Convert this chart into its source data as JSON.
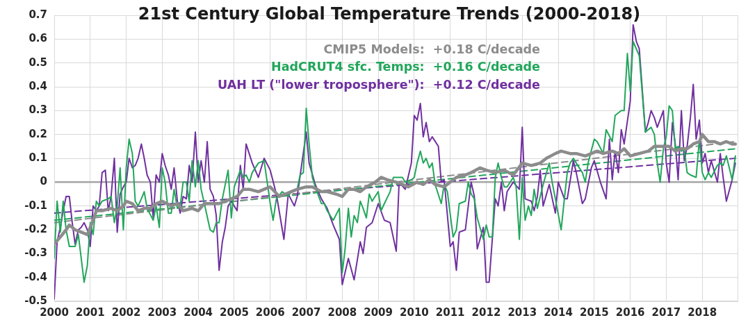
{
  "chart_data": {
    "type": "line",
    "title": "21st Century Global Temperature Trends (2000-2018)",
    "xlim": [
      2000,
      2019
    ],
    "xticks": [
      2000,
      2001,
      2002,
      2003,
      2004,
      2005,
      2006,
      2007,
      2008,
      2009,
      2010,
      2011,
      2012,
      2013,
      2014,
      2015,
      2016,
      2017,
      2018
    ],
    "ylim": [
      -0.5,
      0.7
    ],
    "yticks": [
      -0.5,
      -0.4,
      -0.3,
      -0.2,
      -0.1,
      0,
      0.1,
      0.2,
      0.3,
      0.4,
      0.5,
      0.6,
      0.7
    ],
    "grid": true,
    "legend": "top",
    "marker": "none",
    "series": [
      {
        "name": "CMIP5 Models:  +0.18 C/decade",
        "color": "#8c8c8c",
        "line_style": "solid",
        "x": [
          2000.0,
          2000.17,
          2000.33,
          2000.42,
          2000.58,
          2000.75,
          2000.92,
          2001.08,
          2001.17,
          2001.33,
          2001.58,
          2001.75,
          2001.92,
          2002.0,
          2002.17,
          2002.33,
          2002.5,
          2002.67,
          2002.83,
          2003.0,
          2003.25,
          2003.42,
          2003.58,
          2003.83,
          2004.0,
          2004.17,
          2004.33,
          2004.58,
          2004.75,
          2004.92,
          2005.08,
          2005.25,
          2005.42,
          2005.67,
          2005.83,
          2006.0,
          2006.25,
          2006.42,
          2006.58,
          2006.75,
          2007.0,
          2007.17,
          2007.42,
          2007.58,
          2007.83,
          2008.0,
          2008.17,
          2008.33,
          2008.5,
          2008.67,
          2008.92,
          2009.08,
          2009.25,
          2009.5,
          2009.67,
          2009.83,
          2010.08,
          2010.25,
          2010.42,
          2010.58,
          2010.83,
          2011.0,
          2011.17,
          2011.42,
          2011.58,
          2011.83,
          2012.0,
          2012.25,
          2012.5,
          2012.75,
          2013.0,
          2013.25,
          2013.5,
          2013.67,
          2013.92,
          2014.08,
          2014.33,
          2014.5,
          2014.75,
          2014.92,
          2015.08,
          2015.25,
          2015.5,
          2015.67,
          2015.83,
          2016.0,
          2016.25,
          2016.5,
          2016.67,
          2016.83,
          2017.08,
          2017.25,
          2017.42,
          2017.58,
          2017.75,
          2017.92,
          2018.0,
          2018.17,
          2018.33,
          2018.5,
          2018.67,
          2018.83,
          2018.92
        ],
        "values": [
          -0.26,
          -0.23,
          -0.2,
          -0.18,
          -0.2,
          -0.21,
          -0.22,
          -0.16,
          -0.12,
          -0.12,
          -0.11,
          -0.12,
          -0.1,
          -0.08,
          -0.09,
          -0.12,
          -0.11,
          -0.11,
          -0.09,
          -0.08,
          -0.1,
          -0.09,
          -0.12,
          -0.11,
          -0.12,
          -0.09,
          -0.09,
          -0.09,
          -0.08,
          -0.07,
          -0.06,
          -0.03,
          -0.03,
          -0.04,
          -0.03,
          -0.02,
          -0.06,
          -0.05,
          -0.04,
          -0.03,
          -0.02,
          -0.02,
          -0.04,
          -0.04,
          -0.05,
          -0.06,
          -0.03,
          -0.03,
          -0.04,
          -0.02,
          0.0,
          0.02,
          0.01,
          0.0,
          -0.01,
          -0.02,
          0.0,
          -0.01,
          0.01,
          -0.01,
          -0.02,
          0.0,
          0.02,
          0.03,
          0.04,
          0.06,
          0.05,
          0.04,
          0.05,
          0.03,
          0.08,
          0.07,
          0.08,
          0.1,
          0.12,
          0.13,
          0.12,
          0.12,
          0.11,
          0.12,
          0.13,
          0.12,
          0.13,
          0.12,
          0.14,
          0.11,
          0.12,
          0.13,
          0.15,
          0.15,
          0.15,
          0.13,
          0.14,
          0.14,
          0.16,
          0.17,
          0.2,
          0.17,
          0.17,
          0.16,
          0.17,
          0.16,
          0.16
        ]
      },
      {
        "name": "HadCRUT4 sfc. Temps:  +0.16 C/decade",
        "color": "#22a65b",
        "line_style": "solid",
        "x": [
          2000.0,
          2000.08,
          2000.17,
          2000.25,
          2000.33,
          2000.42,
          2000.58,
          2000.67,
          2000.83,
          2000.92,
          2001.0,
          2001.08,
          2001.17,
          2001.25,
          2001.33,
          2001.5,
          2001.58,
          2001.67,
          2001.75,
          2001.83,
          2001.92,
          2002.0,
          2002.08,
          2002.17,
          2002.25,
          2002.33,
          2002.42,
          2002.5,
          2002.58,
          2002.75,
          2002.83,
          2002.92,
          2003.0,
          2003.08,
          2003.17,
          2003.25,
          2003.33,
          2003.42,
          2003.5,
          2003.58,
          2003.67,
          2003.75,
          2003.83,
          2003.92,
          2004.0,
          2004.08,
          2004.17,
          2004.33,
          2004.42,
          2004.5,
          2004.58,
          2004.67,
          2004.83,
          2004.92,
          2005.0,
          2005.17,
          2005.25,
          2005.33,
          2005.42,
          2005.5,
          2005.67,
          2005.83,
          2006.0,
          2006.08,
          2006.17,
          2006.33,
          2006.42,
          2006.5,
          2006.58,
          2006.75,
          2006.83,
          2006.92,
          2007.0,
          2007.08,
          2007.17,
          2007.25,
          2007.42,
          2007.5,
          2007.58,
          2007.75,
          2007.92,
          2008.0,
          2008.08,
          2008.17,
          2008.25,
          2008.33,
          2008.42,
          2008.5,
          2008.58,
          2008.67,
          2008.75,
          2008.83,
          2009.0,
          2009.08,
          2009.17,
          2009.33,
          2009.42,
          2009.58,
          2009.67,
          2009.75,
          2009.92,
          2010.0,
          2010.08,
          2010.17,
          2010.25,
          2010.33,
          2010.42,
          2010.5,
          2010.58,
          2010.75,
          2010.83,
          2010.92,
          2011.08,
          2011.17,
          2011.25,
          2011.42,
          2011.5,
          2011.58,
          2011.67,
          2011.75,
          2011.92,
          2012.0,
          2012.08,
          2012.17,
          2012.25,
          2012.33,
          2012.42,
          2012.5,
          2012.58,
          2012.75,
          2012.83,
          2012.92,
          2013.0,
          2013.08,
          2013.17,
          2013.25,
          2013.33,
          2013.42,
          2013.58,
          2013.75,
          2013.83,
          2013.92,
          2014.08,
          2014.17,
          2014.25,
          2014.33,
          2014.42,
          2014.5,
          2014.67,
          2014.75,
          2014.83,
          2015.0,
          2015.08,
          2015.25,
          2015.33,
          2015.5,
          2015.58,
          2015.75,
          2015.83,
          2015.92,
          2016.0,
          2016.08,
          2016.25,
          2016.42,
          2016.5,
          2016.58,
          2016.67,
          2016.75,
          2016.83,
          2016.92,
          2017.0,
          2017.08,
          2017.17,
          2017.25,
          2017.33,
          2017.42,
          2017.5,
          2017.58,
          2017.67,
          2017.83,
          2017.92,
          2018.0,
          2018.08,
          2018.17,
          2018.25,
          2018.42,
          2018.5,
          2018.58,
          2018.67,
          2018.83,
          2018.92
        ],
        "values": [
          -0.32,
          -0.08,
          -0.21,
          -0.08,
          -0.2,
          -0.27,
          -0.27,
          -0.22,
          -0.42,
          -0.35,
          -0.17,
          -0.22,
          -0.08,
          -0.1,
          -0.08,
          -0.07,
          -0.06,
          -0.17,
          -0.1,
          0.06,
          -0.2,
          0.06,
          0.18,
          0.12,
          -0.08,
          -0.1,
          -0.07,
          -0.04,
          -0.11,
          -0.16,
          -0.1,
          -0.19,
          0.06,
          0.0,
          -0.13,
          -0.13,
          -0.03,
          -0.11,
          -0.1,
          0.0,
          0.0,
          -0.08,
          0.09,
          -0.02,
          0.09,
          -0.03,
          -0.09,
          -0.2,
          -0.21,
          -0.17,
          -0.17,
          -0.07,
          0.05,
          -0.15,
          -0.02,
          0.05,
          0.02,
          0.03,
          0.0,
          0.04,
          0.08,
          0.09,
          -0.09,
          -0.16,
          -0.07,
          -0.04,
          -0.05,
          -0.06,
          -0.04,
          -0.03,
          0.03,
          0.04,
          0.31,
          0.16,
          0.02,
          -0.02,
          -0.09,
          -0.09,
          -0.12,
          -0.16,
          -0.11,
          -0.38,
          -0.28,
          -0.11,
          -0.23,
          -0.14,
          -0.17,
          -0.08,
          -0.11,
          -0.15,
          -0.05,
          -0.08,
          -0.04,
          -0.12,
          -0.09,
          -0.04,
          0.02,
          0.02,
          0.02,
          0.0,
          0.01,
          0.02,
          0.08,
          0.13,
          0.08,
          0.1,
          0.06,
          0.08,
          -0.01,
          -0.09,
          -0.01,
          -0.04,
          -0.23,
          -0.2,
          -0.09,
          -0.08,
          0.0,
          -0.05,
          -0.07,
          -0.15,
          -0.24,
          -0.18,
          -0.23,
          -0.23,
          0.02,
          0.08,
          0.02,
          -0.02,
          -0.02,
          0.02,
          -0.02,
          -0.24,
          0.02,
          -0.16,
          -0.1,
          -0.14,
          -0.03,
          -0.11,
          -0.01,
          0.08,
          0.0,
          -0.07,
          -0.2,
          -0.07,
          0.04,
          0.08,
          0.1,
          0.08,
          0.04,
          0.0,
          0.08,
          0.18,
          0.17,
          0.12,
          0.22,
          0.17,
          0.28,
          0.3,
          0.3,
          0.54,
          0.38,
          0.59,
          0.53,
          0.21,
          0.22,
          0.23,
          0.2,
          0.08,
          0.0,
          0.14,
          0.19,
          0.32,
          0.3,
          0.14,
          0.15,
          0.13,
          0.14,
          0.04,
          0.03,
          0.02,
          0.18,
          0.04,
          0.01,
          0.04,
          0.02,
          0.07,
          0.08,
          0.07,
          0.11,
          0.01,
          0.11
        ]
      },
      {
        "name": "UAH LT (\"lower troposphere\"):  +0.12 C/decade",
        "color": "#7030a0",
        "line_style": "solid",
        "x": [
          2000.0,
          2000.08,
          2000.17,
          2000.25,
          2000.33,
          2000.42,
          2000.5,
          2000.58,
          2000.67,
          2000.75,
          2000.83,
          2000.92,
          2001.0,
          2001.08,
          2001.17,
          2001.25,
          2001.33,
          2001.42,
          2001.5,
          2001.58,
          2001.67,
          2001.75,
          2001.83,
          2001.92,
          2002.0,
          2002.08,
          2002.17,
          2002.25,
          2002.33,
          2002.42,
          2002.5,
          2002.58,
          2002.67,
          2002.75,
          2002.83,
          2002.92,
          2003.0,
          2003.08,
          2003.17,
          2003.25,
          2003.33,
          2003.42,
          2003.5,
          2003.58,
          2003.67,
          2003.75,
          2003.83,
          2003.92,
          2004.0,
          2004.08,
          2004.17,
          2004.25,
          2004.33,
          2004.42,
          2004.5,
          2004.58,
          2004.67,
          2004.75,
          2004.83,
          2004.92,
          2005.0,
          2005.08,
          2005.17,
          2005.25,
          2005.33,
          2005.5,
          2005.67,
          2005.83,
          2006.0,
          2006.17,
          2006.38,
          2006.5,
          2006.67,
          2006.75,
          2007.0,
          2007.08,
          2007.25,
          2007.42,
          2007.58,
          2007.75,
          2007.92,
          2008.0,
          2008.17,
          2008.33,
          2008.5,
          2008.58,
          2008.67,
          2008.83,
          2009.0,
          2009.17,
          2009.33,
          2009.5,
          2009.58,
          2009.75,
          2009.92,
          2010.0,
          2010.08,
          2010.17,
          2010.25,
          2010.33,
          2010.42,
          2010.5,
          2010.67,
          2010.75,
          2010.83,
          2011.0,
          2011.08,
          2011.17,
          2011.25,
          2011.42,
          2011.58,
          2011.67,
          2011.75,
          2011.92,
          2012.0,
          2012.08,
          2012.25,
          2012.33,
          2012.42,
          2012.5,
          2012.58,
          2012.75,
          2012.92,
          2013.0,
          2013.08,
          2013.25,
          2013.33,
          2013.42,
          2013.5,
          2013.58,
          2013.75,
          2013.92,
          2014.0,
          2014.17,
          2014.25,
          2014.42,
          2014.5,
          2014.67,
          2014.75,
          2014.92,
          2015.0,
          2015.17,
          2015.33,
          2015.42,
          2015.5,
          2015.58,
          2015.67,
          2015.75,
          2015.83,
          2016.0,
          2016.08,
          2016.17,
          2016.25,
          2016.42,
          2016.5,
          2016.58,
          2016.67,
          2016.75,
          2016.92,
          2017.0,
          2017.08,
          2017.17,
          2017.25,
          2017.33,
          2017.42,
          2017.5,
          2017.58,
          2017.67,
          2017.75,
          2017.83,
          2017.92,
          2018.0,
          2018.08,
          2018.17,
          2018.25,
          2018.42,
          2018.5,
          2018.58,
          2018.67,
          2018.83,
          2018.92
        ],
        "values": [
          -0.49,
          -0.25,
          -0.19,
          -0.12,
          -0.06,
          -0.06,
          -0.17,
          -0.26,
          -0.2,
          -0.19,
          -0.17,
          -0.2,
          -0.27,
          -0.1,
          -0.12,
          -0.1,
          0.04,
          0.05,
          -0.12,
          -0.06,
          0.1,
          -0.21,
          -0.05,
          -0.02,
          0.0,
          0.1,
          0.06,
          0.07,
          0.1,
          0.16,
          0.1,
          0.03,
          0.0,
          -0.15,
          0.03,
          0.0,
          0.12,
          0.07,
          0.03,
          -0.03,
          0.06,
          -0.08,
          -0.13,
          -0.06,
          -0.07,
          0.07,
          0.0,
          0.21,
          0.0,
          0.09,
          0.0,
          0.17,
          -0.03,
          -0.06,
          -0.14,
          -0.37,
          -0.25,
          -0.19,
          -0.1,
          -0.08,
          -0.1,
          -0.12,
          0.07,
          -0.03,
          0.16,
          0.08,
          0.02,
          0.1,
          0.05,
          -0.05,
          -0.24,
          -0.05,
          -0.1,
          -0.06,
          0.21,
          0.08,
          -0.01,
          -0.07,
          -0.11,
          -0.18,
          -0.24,
          -0.43,
          -0.32,
          -0.41,
          -0.25,
          -0.3,
          -0.19,
          -0.17,
          -0.09,
          -0.16,
          -0.17,
          -0.29,
          0.0,
          -0.03,
          0.08,
          0.28,
          0.26,
          0.33,
          0.19,
          0.25,
          0.17,
          0.19,
          0.15,
          0.0,
          0.01,
          -0.27,
          -0.25,
          -0.37,
          -0.21,
          -0.2,
          0.0,
          -0.06,
          -0.28,
          -0.19,
          -0.42,
          -0.42,
          -0.07,
          -0.1,
          0.0,
          -0.12,
          -0.04,
          0.0,
          -0.03,
          0.23,
          -0.07,
          -0.08,
          -0.12,
          -0.06,
          0.05,
          -0.1,
          -0.01,
          -0.13,
          0.0,
          -0.07,
          -0.07,
          0.09,
          0.04,
          -0.09,
          -0.07,
          0.06,
          0.09,
          0.0,
          -0.07,
          0.18,
          0.01,
          0.13,
          0.04,
          0.22,
          0.16,
          0.34,
          0.66,
          0.59,
          0.56,
          0.21,
          0.25,
          0.3,
          0.27,
          0.23,
          0.3,
          0.08,
          0.0,
          0.25,
          0.16,
          0.01,
          0.3,
          0.09,
          0.15,
          0.27,
          0.41,
          0.18,
          0.26,
          0.08,
          0.12,
          0.04,
          0.09,
          0.0,
          0.12,
          0.02,
          -0.08,
          0.01,
          0.08
        ]
      },
      {
        "color": "#8c8c8c",
        "line_style": "dashed",
        "x": [
          2000,
          2018.92
        ],
        "values": [
          -0.17,
          0.17
        ]
      },
      {
        "color": "#22a65b",
        "line_style": "dashed",
        "x": [
          2000,
          2018.92
        ],
        "values": [
          -0.16,
          0.14
        ]
      },
      {
        "color": "#7030a0",
        "line_style": "dashed",
        "x": [
          2000,
          2018.92
        ],
        "values": [
          -0.13,
          0.1
        ]
      }
    ]
  }
}
